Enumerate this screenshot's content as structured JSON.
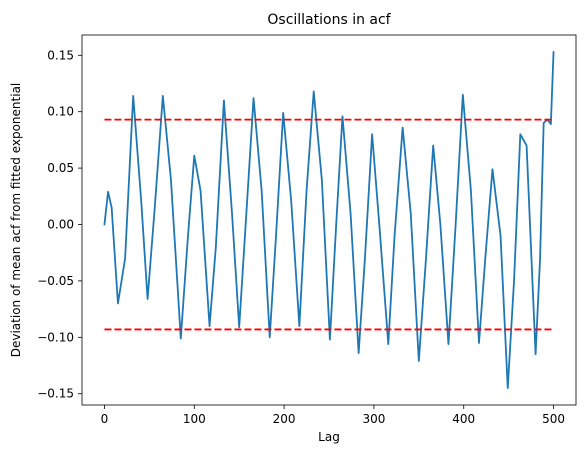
{
  "chart_data": {
    "type": "line",
    "title": "Oscillations in acf",
    "xlabel": "Lag",
    "ylabel": "Deviation of mean acf from fitted exponential",
    "xlim": [
      -25,
      525
    ],
    "ylim": [
      -0.16,
      0.168
    ],
    "xticks": [
      0,
      100,
      200,
      300,
      400,
      500
    ],
    "yticks": [
      -0.15,
      -0.1,
      -0.05,
      0.0,
      0.05,
      0.1,
      0.15
    ],
    "ytick_labels": [
      "−0.15",
      "−0.10",
      "−0.05",
      "0.00",
      "0.05",
      "0.10",
      "0.15"
    ],
    "grid": false,
    "series": [
      {
        "color": "#1f77b4",
        "style": "solid",
        "points": [
          [
            0,
            0.0
          ],
          [
            4,
            0.029
          ],
          [
            8,
            0.015
          ],
          [
            15,
            -0.07
          ],
          [
            23,
            -0.03
          ],
          [
            32,
            0.114
          ],
          [
            41,
            0.02
          ],
          [
            48,
            -0.066
          ],
          [
            56,
            0.015
          ],
          [
            65,
            0.114
          ],
          [
            74,
            0.04
          ],
          [
            85,
            -0.101
          ],
          [
            93,
            -0.01
          ],
          [
            100,
            0.061
          ],
          [
            107,
            0.03
          ],
          [
            117,
            -0.09
          ],
          [
            124,
            -0.02
          ],
          [
            133,
            0.11
          ],
          [
            142,
            0.01
          ],
          [
            150,
            -0.091
          ],
          [
            158,
            0.01
          ],
          [
            166,
            0.112
          ],
          [
            175,
            0.03
          ],
          [
            184,
            -0.1
          ],
          [
            191,
            -0.01
          ],
          [
            199,
            0.099
          ],
          [
            208,
            0.02
          ],
          [
            217,
            -0.09
          ],
          [
            225,
            0.03
          ],
          [
            233,
            0.118
          ],
          [
            242,
            0.04
          ],
          [
            251,
            -0.102
          ],
          [
            258,
            0.0
          ],
          [
            265,
            0.096
          ],
          [
            274,
            0.01
          ],
          [
            283,
            -0.114
          ],
          [
            290,
            -0.03
          ],
          [
            298,
            0.08
          ],
          [
            306,
            0.0
          ],
          [
            316,
            -0.106
          ],
          [
            323,
            -0.01
          ],
          [
            332,
            0.086
          ],
          [
            341,
            0.01
          ],
          [
            350,
            -0.121
          ],
          [
            358,
            -0.03
          ],
          [
            366,
            0.07
          ],
          [
            374,
            0.0
          ],
          [
            383,
            -0.106
          ],
          [
            391,
            0.0
          ],
          [
            399,
            0.115
          ],
          [
            408,
            0.03
          ],
          [
            417,
            -0.105
          ],
          [
            424,
            -0.03
          ],
          [
            432,
            0.049
          ],
          [
            441,
            -0.01
          ],
          [
            449,
            -0.145
          ],
          [
            456,
            -0.05
          ],
          [
            463,
            0.08
          ],
          [
            470,
            0.07
          ],
          [
            480,
            -0.115
          ],
          [
            485,
            -0.03
          ],
          [
            489,
            0.09
          ],
          [
            493,
            0.093
          ],
          [
            497,
            0.089
          ],
          [
            500,
            0.153
          ]
        ]
      },
      {
        "color": "#ff0000",
        "style": "dashed",
        "points": [
          [
            0,
            0.093
          ],
          [
            500,
            0.093
          ]
        ]
      },
      {
        "color": "#ff0000",
        "style": "dashed",
        "points": [
          [
            0,
            -0.093
          ],
          [
            500,
            -0.093
          ]
        ]
      }
    ]
  }
}
